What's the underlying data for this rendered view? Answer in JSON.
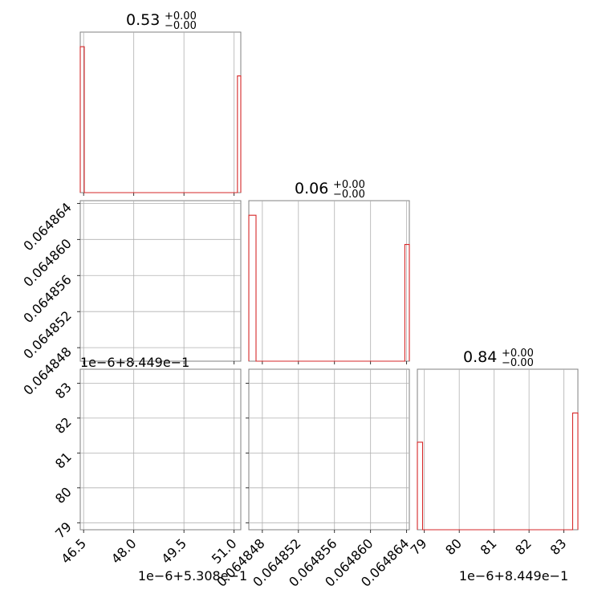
{
  "chart_data": {
    "type": "corner",
    "parameters": [
      "p0",
      "p1",
      "p2"
    ],
    "grid": true,
    "colors": {
      "hist": "#d62728",
      "frame": "#808080",
      "grid": "#b0b0b0"
    },
    "axes": [
      {
        "id": "p0",
        "offset_text": "1e−6+5.308e−1",
        "range": [
          46.4,
          51.2
        ],
        "ticks": [
          46.5,
          48.0,
          49.5,
          51.0
        ],
        "tick_labels": [
          "46.5",
          "48.0",
          "49.5",
          "51.0"
        ]
      },
      {
        "id": "p1",
        "offset_text": "",
        "range": [
          0.0648465,
          0.0648643
        ],
        "ticks": [
          0.064848,
          0.064852,
          0.064856,
          0.06486,
          0.064864
        ],
        "tick_labels": [
          "0.064848",
          "0.064852",
          "0.064856",
          "0.064860",
          "0.064864"
        ]
      },
      {
        "id": "p2",
        "offset_text": "1e−6+8.449e−1",
        "range": [
          78.8,
          83.4
        ],
        "ticks": [
          79,
          80,
          81,
          82,
          83
        ],
        "tick_labels": [
          "79",
          "80",
          "81",
          "82",
          "83"
        ]
      }
    ],
    "histograms": [
      {
        "param": "p0",
        "title": {
          "value": "0.53",
          "upper": "+0.00",
          "lower": "−0.00"
        },
        "bins": [
          {
            "x0": 46.4,
            "x1": 46.52,
            "count": 1.0
          },
          {
            "x0": 46.52,
            "x1": 51.1,
            "count": 0
          },
          {
            "x0": 51.1,
            "x1": 51.2,
            "count": 0.8
          }
        ]
      },
      {
        "param": "p1",
        "title": {
          "value": "0.06",
          "upper": "+0.00",
          "lower": "−0.00"
        },
        "bins": [
          {
            "x0": 0.0648465,
            "x1": 0.0648473,
            "count": 1.0
          },
          {
            "x0": 0.0648473,
            "x1": 0.0648638,
            "count": 0
          },
          {
            "x0": 0.0648638,
            "x1": 0.0648643,
            "count": 0.8
          }
        ]
      },
      {
        "param": "p2",
        "title": {
          "value": "0.84",
          "upper": "+0.00",
          "lower": "−0.00"
        },
        "bins": [
          {
            "x0": 78.8,
            "x1": 78.95,
            "count": 0.6
          },
          {
            "x0": 78.95,
            "x1": 83.25,
            "count": 0
          },
          {
            "x0": 83.25,
            "x1": 83.4,
            "count": 0.8
          }
        ]
      }
    ],
    "hist_ylim": [
      0,
      1.1
    ],
    "scatter_panels": [
      {
        "row": 1,
        "col": 0,
        "points": []
      },
      {
        "row": 2,
        "col": 0,
        "points": []
      },
      {
        "row": 2,
        "col": 1,
        "points": []
      }
    ]
  }
}
